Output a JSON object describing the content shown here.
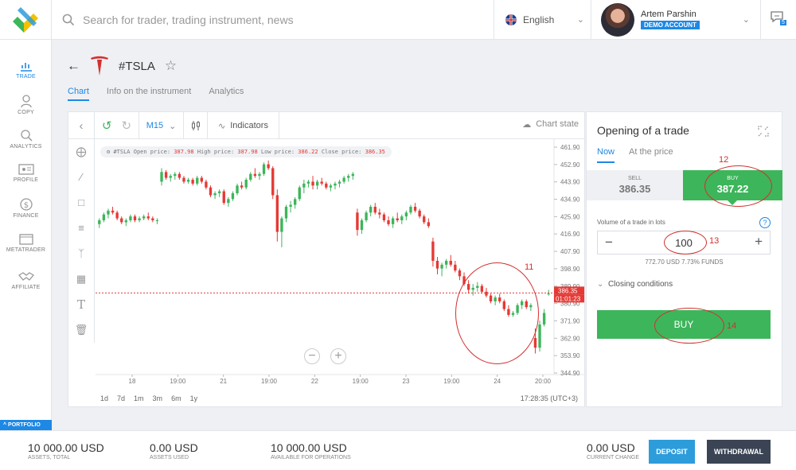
{
  "search": {
    "placeholder": "Search for trader, trading instrument, news"
  },
  "language": {
    "label": "English"
  },
  "user": {
    "name": "Artem Parshin",
    "badge": "DEMO ACCOUNT"
  },
  "chat": {
    "count": "5"
  },
  "sidebar": {
    "items": [
      {
        "label": "TRADE",
        "icon": "trade-icon"
      },
      {
        "label": "COPY",
        "icon": "copy-icon"
      },
      {
        "label": "ANALYTICS",
        "icon": "analytics-icon"
      },
      {
        "label": "PROFILE",
        "icon": "profile-icon"
      },
      {
        "label": "FINANCE",
        "icon": "finance-icon"
      },
      {
        "label": "METATRADER",
        "icon": "metatrader-icon"
      },
      {
        "label": "AFFILIATE",
        "icon": "affiliate-icon"
      }
    ],
    "portfolio": "PORTFOLIO"
  },
  "instrument": {
    "ticker": "#TSLA"
  },
  "tabs": [
    "Chart",
    "Info on the instrument",
    "Analytics"
  ],
  "chart": {
    "timeframe": "M15",
    "indicators": "Indicators",
    "state": "Chart state",
    "info": {
      "symbol": "#TSLA",
      "open_label": "Open price:",
      "open": "387.98",
      "high_label": "High price:",
      "high": "387.98",
      "low_label": "Low price:",
      "low": "386.22",
      "close_label": "Close price:",
      "close": "386.35"
    },
    "price_ticks": [
      "461.90",
      "452.90",
      "443.90",
      "434.90",
      "425.90",
      "416.90",
      "407.90",
      "398.90",
      "389.90",
      "380.90",
      "371.90",
      "362.90",
      "353.90",
      "344.90"
    ],
    "time_ticks": [
      "18",
      "19:00",
      "21",
      "19:00",
      "22",
      "19:00",
      "23",
      "19:00",
      "24",
      "20:00"
    ],
    "current_price": "386.35",
    "countdown": "01:01:23",
    "periods": [
      "1d",
      "7d",
      "1m",
      "3m",
      "6m",
      "1y"
    ],
    "clock": "17:28:35 (UTC+3)"
  },
  "chart_data": {
    "type": "candlestick",
    "ylim": [
      344.9,
      461.9
    ],
    "current_price": 386.35,
    "candles": [
      [
        422,
        425,
        420,
        424
      ],
      [
        424,
        428,
        423,
        427
      ],
      [
        427,
        430,
        425,
        429
      ],
      [
        429,
        431,
        427,
        428
      ],
      [
        428,
        429,
        424,
        425
      ],
      [
        425,
        426,
        422,
        423
      ],
      [
        423,
        425,
        421,
        424
      ],
      [
        424,
        427,
        423,
        426
      ],
      [
        426,
        427,
        423,
        424
      ],
      [
        424,
        426,
        423,
        425
      ],
      [
        425,
        427,
        424,
        426
      ],
      [
        426,
        428,
        424,
        425
      ],
      [
        425,
        426,
        423,
        424
      ],
      [
        424,
        425,
        422,
        424
      ],
      [
        444,
        451,
        442,
        449
      ],
      [
        449,
        450,
        445,
        446
      ],
      [
        446,
        448,
        444,
        447
      ],
      [
        447,
        449,
        445,
        448
      ],
      [
        448,
        449,
        445,
        446
      ],
      [
        446,
        447,
        443,
        444
      ],
      [
        444,
        446,
        443,
        445
      ],
      [
        445,
        446,
        442,
        443
      ],
      [
        443,
        447,
        442,
        446
      ],
      [
        446,
        447,
        443,
        444
      ],
      [
        444,
        445,
        440,
        441
      ],
      [
        441,
        442,
        436,
        437
      ],
      [
        437,
        439,
        435,
        438
      ],
      [
        438,
        440,
        436,
        439
      ],
      [
        439,
        440,
        432,
        433
      ],
      [
        433,
        436,
        431,
        435
      ],
      [
        435,
        439,
        434,
        438
      ],
      [
        438,
        443,
        437,
        442
      ],
      [
        442,
        444,
        440,
        441
      ],
      [
        441,
        446,
        440,
        445
      ],
      [
        445,
        449,
        444,
        448
      ],
      [
        448,
        451,
        446,
        447
      ],
      [
        447,
        449,
        445,
        448
      ],
      [
        448,
        454,
        447,
        453
      ],
      [
        453,
        455,
        450,
        451
      ],
      [
        451,
        452,
        435,
        437
      ],
      [
        437,
        440,
        413,
        418
      ],
      [
        418,
        426,
        410,
        425
      ],
      [
        425,
        432,
        423,
        431
      ],
      [
        431,
        434,
        428,
        432
      ],
      [
        432,
        436,
        430,
        435
      ],
      [
        435,
        442,
        434,
        441
      ],
      [
        441,
        445,
        438,
        443
      ],
      [
        443,
        445,
        441,
        444
      ],
      [
        444,
        447,
        440,
        442
      ],
      [
        442,
        445,
        440,
        444
      ],
      [
        444,
        446,
        442,
        443
      ],
      [
        443,
        444,
        440,
        441
      ],
      [
        441,
        443,
        439,
        442
      ],
      [
        442,
        444,
        440,
        443
      ],
      [
        443,
        445,
        441,
        444
      ],
      [
        444,
        447,
        443,
        446
      ],
      [
        446,
        448,
        444,
        447
      ],
      [
        447,
        449,
        445,
        448
      ],
      [
        428,
        430,
        416,
        419
      ],
      [
        419,
        425,
        417,
        424
      ],
      [
        424,
        429,
        423,
        428
      ],
      [
        428,
        432,
        426,
        431
      ],
      [
        431,
        433,
        427,
        428
      ],
      [
        428,
        430,
        425,
        427
      ],
      [
        427,
        428,
        423,
        424
      ],
      [
        424,
        426,
        421,
        422
      ],
      [
        422,
        426,
        420,
        425
      ],
      [
        425,
        428,
        423,
        424
      ],
      [
        424,
        427,
        422,
        426
      ],
      [
        426,
        429,
        424,
        428
      ],
      [
        428,
        432,
        427,
        431
      ],
      [
        431,
        433,
        428,
        429
      ],
      [
        429,
        430,
        425,
        426
      ],
      [
        426,
        427,
        422,
        423
      ],
      [
        423,
        425,
        420,
        421
      ],
      [
        413,
        415,
        400,
        403
      ],
      [
        403,
        405,
        396,
        399
      ],
      [
        399,
        402,
        395,
        401
      ],
      [
        401,
        404,
        399,
        403
      ],
      [
        403,
        406,
        400,
        401
      ],
      [
        401,
        403,
        397,
        398
      ],
      [
        398,
        399,
        393,
        395
      ],
      [
        395,
        397,
        390,
        391
      ],
      [
        391,
        393,
        386,
        388
      ],
      [
        388,
        391,
        385,
        389
      ],
      [
        389,
        392,
        387,
        390
      ],
      [
        390,
        391,
        386,
        387
      ],
      [
        387,
        389,
        384,
        385
      ],
      [
        385,
        386,
        381,
        382
      ],
      [
        382,
        385,
        380,
        384
      ],
      [
        384,
        386,
        381,
        382
      ],
      [
        382,
        383,
        377,
        378
      ],
      [
        378,
        380,
        374,
        375
      ],
      [
        375,
        377,
        374,
        376
      ],
      [
        376,
        381,
        375,
        380
      ],
      [
        380,
        383,
        378,
        382
      ],
      [
        382,
        383,
        378,
        379
      ],
      [
        379,
        381,
        377,
        380
      ],
      [
        363,
        368,
        355,
        358
      ],
      [
        358,
        372,
        356,
        370
      ],
      [
        370,
        378,
        369,
        376
      ],
      [
        386,
        388,
        385,
        386
      ]
    ]
  },
  "trade": {
    "title": "Opening of a trade",
    "tabs": [
      "Now",
      "At the price"
    ],
    "sell_label": "SELL",
    "sell_price": "386.35",
    "buy_label": "BUY",
    "buy_price": "387.22",
    "volume_label": "Volume of a trade in lots",
    "volume": "100",
    "funds": "772.70 USD  7.73% FUNDS",
    "closing": "Closing conditions",
    "buy_button": "BUY"
  },
  "annotations": [
    "11",
    "12",
    "13",
    "14"
  ],
  "bottom": {
    "stats": [
      {
        "value": "10 000.00 USD",
        "label": "ASSETS, TOTAL"
      },
      {
        "value": "0.00 USD",
        "label": "ASSETS USED"
      },
      {
        "value": "10 000.00 USD",
        "label": "AVAILABLE FOR OPERATIONS"
      },
      {
        "value": "0.00 USD",
        "label": "CURRENT CHANGE"
      }
    ],
    "deposit": "DEPOSIT",
    "withdrawal": "WITHDRAWAL"
  }
}
